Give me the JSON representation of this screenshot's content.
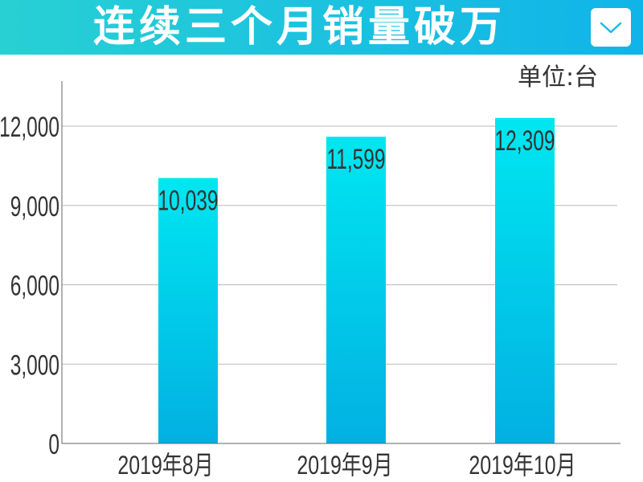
{
  "header": {
    "title": "连续三个月销量破万",
    "dropdown_icon": "chevron-down-icon"
  },
  "colors": {
    "header_start": "#28d0d4",
    "header_end": "#10b4e9",
    "bar_top": "#00e7f1",
    "bar_bottom": "#02b0e2",
    "grid": "#b9b9b9",
    "axis": "#666666",
    "text": "#333333",
    "icon": "#1cbbe6"
  },
  "chart_data": {
    "type": "bar",
    "unit_label": "单位:台",
    "categories": [
      "2019年8月",
      "2019年9月",
      "2019年10月"
    ],
    "values": [
      10039,
      11599,
      12309
    ],
    "data_labels": [
      "10,039",
      "11,599",
      "12,309"
    ],
    "yticks": [
      0,
      3000,
      6000,
      9000,
      12000
    ],
    "ytick_labels": [
      "0",
      "3,000",
      "6,000",
      "9,000",
      "12,000"
    ],
    "ylim": [
      0,
      13700
    ],
    "grid": true,
    "legend": "none"
  }
}
